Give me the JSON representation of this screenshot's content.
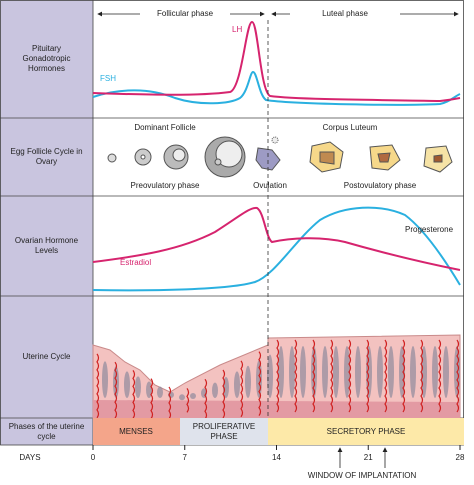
{
  "top_phases": {
    "follicular": "Follicular phase",
    "luteal": "Luteal phase"
  },
  "rows": [
    {
      "label": "Pituitary Gonadotropic Hormones"
    },
    {
      "label": "Egg Follicle Cycle in Ovary"
    },
    {
      "label": "Ovarian Hormone Levels"
    },
    {
      "label": "Uterine Cycle"
    },
    {
      "label": "Phases of the uterine cycle"
    }
  ],
  "hormones": {
    "lh": "LH",
    "fsh": "FSH",
    "estradiol": "Estradiol",
    "progesterone": "Progesterone"
  },
  "follicle": {
    "dominant": "Dominant Follicle",
    "corpus_luteum": "Corpus Luteum",
    "preovulatory": "Preovulatory phase",
    "ovulation": "Ovulation",
    "postovulatory": "Postovulatory phase"
  },
  "phases": {
    "menses": "MENSES",
    "proliferative": "PROLIFERATIVE PHASE",
    "secretory": "SECRETORY PHASE"
  },
  "days": {
    "label": "DAYS",
    "ticks": [
      0,
      7,
      14,
      21,
      28
    ]
  },
  "window": "WINDOW OF IMPLANTATION"
}
